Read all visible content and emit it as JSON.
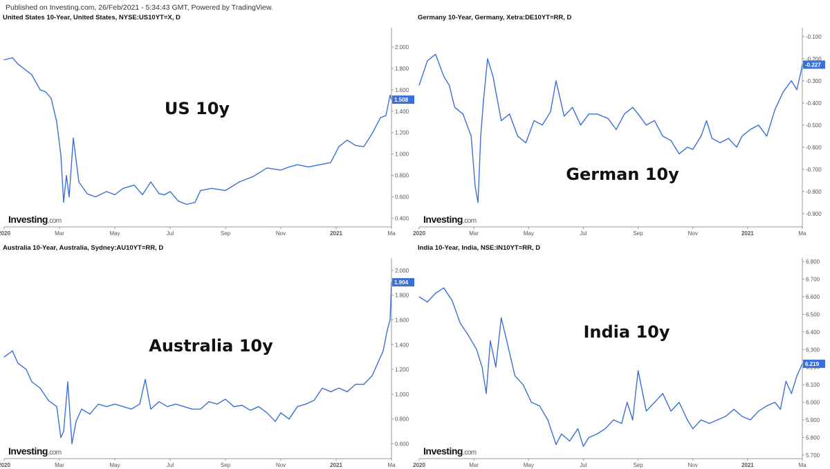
{
  "header": {
    "published": "Published on Investing.com, 26/Feb/2021 - 5:34:43 GMT, Powered by TradingView."
  },
  "brand": {
    "logo_main": "Investing",
    "logo_dot": ".com",
    "logo_accent": "#f5a623",
    "line_color": "#3a6fd8",
    "label_color": "#3a6fd8"
  },
  "chart_data": [
    {
      "type": "line",
      "title": "United States 10-Year, United States, NYSE:US10YT=X, D",
      "big_label": "US 10y",
      "ylim": [
        0.32,
        2.18
      ],
      "yticks": [
        "0.400",
        "0.600",
        "0.800",
        "1.000",
        "1.200",
        "1.400",
        "1.600",
        "1.800",
        "2.000"
      ],
      "ytick_values": [
        0.4,
        0.6,
        0.8,
        1.0,
        1.2,
        1.4,
        1.6,
        1.8,
        2.0
      ],
      "xticks": [
        "2020",
        "Mar",
        "May",
        "Jul",
        "Sep",
        "Nov",
        "2021",
        "Ma"
      ],
      "xtick_values": [
        0,
        2,
        4,
        6,
        8,
        10,
        12,
        14
      ],
      "x": [
        0,
        0.3,
        0.5,
        0.8,
        1.0,
        1.3,
        1.5,
        1.7,
        1.9,
        2.05,
        2.15,
        2.25,
        2.35,
        2.5,
        2.7,
        3.0,
        3.3,
        3.7,
        4.0,
        4.3,
        4.7,
        5.0,
        5.3,
        5.6,
        5.8,
        6.0,
        6.3,
        6.6,
        6.9,
        7.1,
        7.5,
        8.0,
        8.5,
        9.0,
        9.5,
        10.0,
        10.3,
        10.6,
        11.0,
        11.4,
        11.8,
        12.1,
        12.4,
        12.7,
        13.0,
        13.3,
        13.6,
        13.8,
        13.95,
        14.0
      ],
      "values": [
        1.88,
        1.9,
        1.84,
        1.78,
        1.74,
        1.6,
        1.58,
        1.52,
        1.3,
        0.99,
        0.55,
        0.8,
        0.6,
        1.15,
        0.74,
        0.63,
        0.6,
        0.65,
        0.62,
        0.68,
        0.71,
        0.62,
        0.74,
        0.63,
        0.62,
        0.65,
        0.56,
        0.53,
        0.55,
        0.66,
        0.68,
        0.66,
        0.74,
        0.79,
        0.87,
        0.85,
        0.88,
        0.9,
        0.88,
        0.9,
        0.92,
        1.07,
        1.13,
        1.08,
        1.07,
        1.19,
        1.34,
        1.36,
        1.55,
        1.508
      ],
      "last_value": "1.508"
    },
    {
      "type": "line",
      "title": "Germany 10-Year, Germany, Xetra:DE10YT=RR, D",
      "big_label": "German 10y",
      "ylim": [
        -0.96,
        -0.06
      ],
      "yticks": [
        "-0.900",
        "-0.800",
        "-0.700",
        "-0.600",
        "-0.500",
        "-0.400",
        "-0.300",
        "-0.200",
        "-0.100"
      ],
      "ytick_values": [
        -0.9,
        -0.8,
        -0.7,
        -0.6,
        -0.5,
        -0.4,
        -0.3,
        -0.2,
        -0.1
      ],
      "xticks": [
        "2020",
        "Mar",
        "May",
        "Jul",
        "Sep",
        "Nov",
        "2021",
        "Ma"
      ],
      "xtick_values": [
        0,
        2,
        4,
        6,
        8,
        10,
        12,
        14
      ],
      "x": [
        0,
        0.3,
        0.6,
        0.9,
        1.1,
        1.3,
        1.6,
        1.9,
        2.05,
        2.15,
        2.25,
        2.35,
        2.5,
        2.7,
        3.0,
        3.3,
        3.6,
        3.9,
        4.2,
        4.5,
        4.8,
        5.0,
        5.3,
        5.6,
        5.9,
        6.2,
        6.5,
        6.9,
        7.2,
        7.5,
        7.8,
        8.0,
        8.3,
        8.6,
        8.9,
        9.2,
        9.5,
        9.8,
        10.0,
        10.3,
        10.5,
        10.7,
        11.0,
        11.3,
        11.6,
        11.8,
        12.1,
        12.4,
        12.7,
        13.0,
        13.3,
        13.6,
        13.8,
        13.95,
        14.0
      ],
      "values": [
        -0.32,
        -0.21,
        -0.18,
        -0.28,
        -0.32,
        -0.42,
        -0.45,
        -0.55,
        -0.78,
        -0.85,
        -0.55,
        -0.39,
        -0.2,
        -0.28,
        -0.48,
        -0.45,
        -0.55,
        -0.58,
        -0.48,
        -0.5,
        -0.44,
        -0.3,
        -0.46,
        -0.42,
        -0.5,
        -0.45,
        -0.45,
        -0.47,
        -0.52,
        -0.45,
        -0.42,
        -0.45,
        -0.5,
        -0.48,
        -0.55,
        -0.57,
        -0.63,
        -0.6,
        -0.61,
        -0.55,
        -0.48,
        -0.56,
        -0.58,
        -0.56,
        -0.6,
        -0.55,
        -0.52,
        -0.5,
        -0.55,
        -0.43,
        -0.35,
        -0.3,
        -0.34,
        -0.26,
        -0.227
      ],
      "last_value": "-0.227"
    },
    {
      "type": "line",
      "title": "Australia 10-Year, Australia, Sydney:AU10YT=RR, D",
      "big_label": "Australia 10y",
      "ylim": [
        0.48,
        2.1
      ],
      "yticks": [
        "0.600",
        "0.800",
        "1.000",
        "1.200",
        "1.400",
        "1.600",
        "1.800",
        "2.000"
      ],
      "ytick_values": [
        0.6,
        0.8,
        1.0,
        1.2,
        1.4,
        1.6,
        1.8,
        2.0
      ],
      "xticks": [
        "2020",
        "Mar",
        "May",
        "Jul",
        "Sep",
        "Nov",
        "2021",
        "Ma"
      ],
      "xtick_values": [
        0,
        2,
        4,
        6,
        8,
        10,
        12,
        14
      ],
      "x": [
        0,
        0.3,
        0.5,
        0.8,
        1.0,
        1.3,
        1.6,
        1.9,
        2.05,
        2.15,
        2.3,
        2.45,
        2.6,
        2.8,
        3.1,
        3.4,
        3.7,
        4.0,
        4.3,
        4.6,
        4.9,
        5.1,
        5.3,
        5.6,
        5.9,
        6.2,
        6.5,
        6.8,
        7.1,
        7.4,
        7.7,
        8.0,
        8.3,
        8.6,
        8.9,
        9.2,
        9.5,
        9.8,
        10.0,
        10.3,
        10.6,
        10.9,
        11.2,
        11.5,
        11.8,
        12.1,
        12.4,
        12.7,
        13.0,
        13.3,
        13.5,
        13.7,
        13.85,
        13.95,
        14.0
      ],
      "values": [
        1.3,
        1.35,
        1.25,
        1.2,
        1.1,
        1.05,
        0.95,
        0.9,
        0.65,
        0.7,
        1.1,
        0.6,
        0.78,
        0.88,
        0.84,
        0.92,
        0.9,
        0.92,
        0.9,
        0.88,
        0.92,
        1.12,
        0.88,
        0.94,
        0.9,
        0.92,
        0.9,
        0.88,
        0.88,
        0.94,
        0.92,
        0.96,
        0.9,
        0.91,
        0.87,
        0.9,
        0.85,
        0.78,
        0.85,
        0.8,
        0.9,
        0.92,
        0.95,
        1.05,
        1.02,
        1.05,
        1.02,
        1.08,
        1.08,
        1.15,
        1.25,
        1.35,
        1.52,
        1.6,
        1.904
      ],
      "last_value": "1.904"
    },
    {
      "type": "line",
      "title": "India 10-Year, India, NSE:IN10YT=RR, D",
      "big_label": "India 10y",
      "ylim": [
        5.68,
        6.82
      ],
      "yticks": [
        "5.700",
        "5.800",
        "5.900",
        "6.000",
        "6.100",
        "6.200",
        "6.300",
        "6.400",
        "6.500",
        "6.600",
        "6.700",
        "6.800"
      ],
      "ytick_values": [
        5.7,
        5.8,
        5.9,
        6.0,
        6.1,
        6.2,
        6.3,
        6.4,
        6.5,
        6.6,
        6.7,
        6.8
      ],
      "xticks": [
        "2020",
        "Mar",
        "May",
        "Jul",
        "Sep",
        "Nov",
        "2021",
        "Ma"
      ],
      "xtick_values": [
        0,
        2,
        4,
        6,
        8,
        10,
        12,
        14
      ],
      "x": [
        0,
        0.3,
        0.6,
        0.9,
        1.2,
        1.5,
        1.8,
        2.1,
        2.3,
        2.45,
        2.6,
        2.8,
        3.0,
        3.2,
        3.5,
        3.8,
        4.1,
        4.4,
        4.7,
        5.0,
        5.2,
        5.5,
        5.8,
        6.0,
        6.2,
        6.5,
        6.8,
        7.1,
        7.4,
        7.6,
        7.8,
        8.0,
        8.3,
        8.6,
        8.9,
        9.2,
        9.5,
        9.8,
        10.0,
        10.3,
        10.6,
        10.9,
        11.2,
        11.5,
        11.8,
        12.1,
        12.4,
        12.7,
        13.0,
        13.2,
        13.4,
        13.6,
        13.8,
        14.0
      ],
      "values": [
        6.6,
        6.57,
        6.62,
        6.65,
        6.58,
        6.45,
        6.38,
        6.3,
        6.2,
        6.05,
        6.35,
        6.2,
        6.48,
        6.35,
        6.15,
        6.1,
        6.0,
        5.98,
        5.9,
        5.76,
        5.82,
        5.78,
        5.85,
        5.75,
        5.8,
        5.82,
        5.85,
        5.9,
        5.88,
        6.0,
        5.9,
        6.18,
        5.95,
        6.0,
        6.05,
        5.95,
        6.0,
        5.9,
        5.85,
        5.9,
        5.88,
        5.9,
        5.92,
        5.96,
        5.92,
        5.9,
        5.95,
        5.98,
        6.0,
        5.96,
        6.12,
        6.05,
        6.15,
        6.219
      ],
      "last_value": "6.219"
    }
  ]
}
